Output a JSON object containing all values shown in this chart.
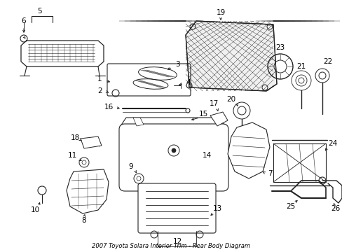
{
  "title": "2007 Toyota Solara Interior Trim - Rear Body Diagram",
  "bg_color": "#ffffff",
  "line_color": "#222222",
  "label_color": "#000000",
  "xlim": [
    0,
    489
  ],
  "ylim": [
    0,
    360
  ],
  "figwidth": 4.89,
  "figheight": 3.6,
  "dpi": 100
}
